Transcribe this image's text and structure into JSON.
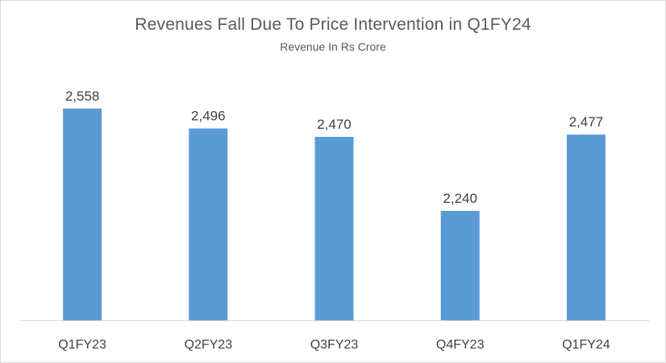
{
  "chart_data": {
    "type": "bar",
    "title": "Revenues Fall Due To Price Intervention  in Q1FY24",
    "subtitle": "Revenue  In Rs Crore",
    "categories": [
      "Q1FY23",
      "Q2FY23",
      "Q3FY23",
      "Q4FY23",
      "Q1FY24"
    ],
    "values": [
      2558,
      2496,
      2470,
      2240,
      2477
    ],
    "value_labels": [
      "2,558",
      "2,496",
      "2,470",
      "2,240",
      "2,477"
    ],
    "bar_color": "#5b9bd5",
    "ylim": [
      1900,
      2700
    ],
    "grid": false,
    "legend": "none"
  }
}
